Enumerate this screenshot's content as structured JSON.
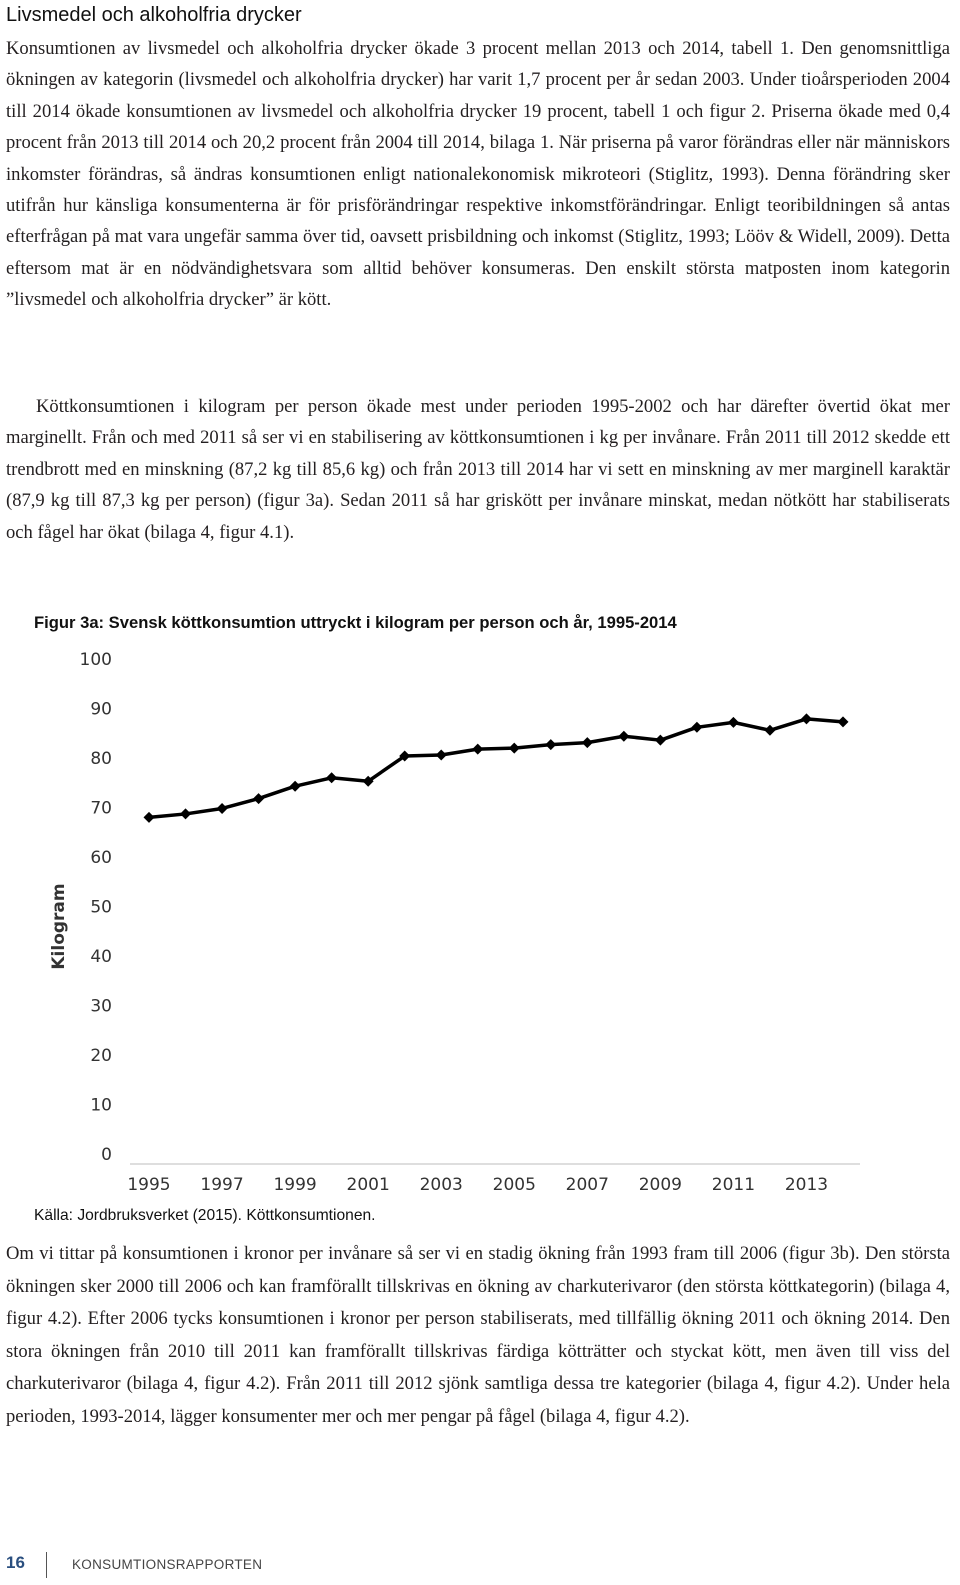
{
  "section_title": "Livsmedel och alkoholfria drycker",
  "paragraphs": {
    "p1": "Konsumtionen av livsmedel och alkoholfria drycker ökade 3 procent mellan 2013 och 2014, tabell 1. Den genomsnittliga ökningen av kategorin (livsmedel och alkoholfria drycker) har varit 1,7 procent per år sedan 2003. Under tioårsperioden 2004 till 2014 ökade konsumtionen av livsmedel och alkoholfria drycker 19 procent, tabell 1 och figur 2. Priserna ökade med 0,4 procent från 2013 till 2014 och 20,2 procent från 2004 till 2014, bilaga 1. När priserna på varor förändras eller när människors inkomster förändras, så ändras konsumtionen enligt nationalekonomisk mikroteori (Stiglitz, 1993). Denna förändring sker utifrån hur känsliga konsumenterna är för prisförändringar respektive inkomstförändringar. Enligt teoribildningen så antas efterfrågan på mat vara ungefär samma över tid, oavsett prisbildning och inkomst (Stiglitz, 1993; Lööv & Widell, 2009). Detta eftersom mat är en nödvändighetsvara som alltid behöver konsumeras. Den enskilt största matposten inom kategorin ”livsmedel och alkoholfria drycker” är kött.",
    "p2": "Köttkonsumtionen i kilogram per person ökade mest under perioden 1995-2002 och har därefter övertid ökat mer marginellt. Från och med 2011 så ser vi en stabilisering av köttkonsumtionen i kg per invånare. Från 2011 till 2012 skedde ett trendbrott med en minskning (87,2 kg till 85,6 kg) och från 2013 till 2014 har vi sett en minskning av mer marginell karaktär (87,9 kg till 87,3 kg per person) (figur 3a). Sedan 2011 så har griskött per invånare minskat, medan nötkött har stabiliserats och fågel har ökat (bilaga 4, figur 4.1).",
    "p3": "Om vi tittar på konsumtionen i kronor per invånare så ser vi en stadig ökning från 1993 fram till 2006 (figur 3b). Den största ökningen sker 2000 till 2006 och kan framförallt tillskrivas en ökning av charkuterivaror (den största köttkategorin) (bilaga 4, figur 4.2). Efter 2006 tycks konsumtionen i kronor per person stabiliserats, med tillfällig ökning 2011 och ökning 2014. Den stora ökningen från 2010 till 2011 kan framförallt tillskrivas färdiga kötträtter och styckat kött, men även till viss del charkuterivaror (bilaga 4, figur 4.2). Från 2011 till 2012 sjönk samtliga dessa tre kategorier (bilaga 4, figur 4.2). Under hela perioden, 1993-2014, lägger konsumenter mer och mer pengar på fågel (bilaga 4, figur 4.2)."
  },
  "figure": {
    "caption": "Figur 3a: Svensk köttkonsumtion uttryckt i kilogram per person och år, 1995-2014",
    "source": "Källa: Jordbruksverket (2015). Köttkonsumtionen."
  },
  "chart_data": {
    "type": "line",
    "title": "",
    "xlabel": "",
    "ylabel": "Kilogram",
    "x": [
      1995,
      1996,
      1997,
      1998,
      1999,
      2000,
      2001,
      2002,
      2003,
      2004,
      2005,
      2006,
      2007,
      2008,
      2009,
      2010,
      2011,
      2012,
      2013,
      2014
    ],
    "xtick_labels": [
      "1995",
      "1997",
      "1999",
      "2001",
      "2003",
      "2005",
      "2007",
      "2009",
      "2011",
      "2013"
    ],
    "ytick_labels": [
      "0",
      "10",
      "20",
      "30",
      "40",
      "50",
      "60",
      "70",
      "80",
      "90",
      "100"
    ],
    "series": [
      {
        "values": [
          68.0,
          68.7,
          69.8,
          71.8,
          74.3,
          76.0,
          75.3,
          80.4,
          80.6,
          81.8,
          82.0,
          82.7,
          83.1,
          84.4,
          83.6,
          86.2,
          87.2,
          85.6,
          87.9,
          87.3
        ]
      }
    ],
    "ylim": [
      0,
      100
    ],
    "grid": false,
    "legend": "none",
    "line_color": "#000000",
    "marker": "diamond"
  },
  "footer": {
    "page_number": "16",
    "publication": "KONSUMTIONSRAPPORTEN"
  }
}
